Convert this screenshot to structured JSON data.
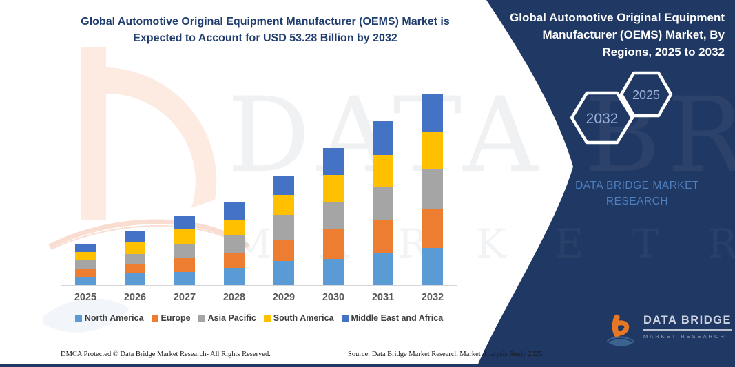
{
  "page": {
    "main_title": "Global Automotive Original Equipment Manufacturer (OEMS) Market is Expected to Account for USD 53.28 Billion by 2032",
    "footer_left": "DMCA Protected © Data Bridge Market Research-  All Rights Reserved.",
    "footer_right": "Source: Data Bridge Market Research  Market Analysis Study 2025"
  },
  "panel": {
    "title": "Global Automotive Original Equipment Manufacturer (OEMS) Market, By Regions, 2025 to 2032",
    "hexagon_left": "2032",
    "hexagon_right": "2025",
    "brand_line1": "DATA BRIDGE MARKET",
    "brand_line2": "RESEARCH",
    "logo_name": "DATA BRIDGE",
    "logo_sub": "MARKET RESEARCH",
    "background_color": "#203864",
    "brand_text_color": "#4e80c0"
  },
  "watermark": {
    "line1": "DATA BRIDGE",
    "line2": "M A R K E T   R E S E A R C H"
  },
  "chart_data": {
    "type": "bar",
    "stacked": true,
    "title": "Global Automotive Original Equipment Manufacturer (OEMS) Market is Expected to Account for USD 53.28 Billion by 2032",
    "unit": "USD Billion",
    "xlabel": "",
    "ylabel": "",
    "grid": false,
    "y_axis_shown": false,
    "legend_position": "bottom",
    "categories": [
      "2025",
      "2026",
      "2027",
      "2028",
      "2029",
      "2030",
      "2031",
      "2032"
    ],
    "series": [
      {
        "name": "North America",
        "color": "#5B9BD5",
        "values": [
          2.3,
          3.2,
          3.7,
          4.8,
          6.7,
          7.3,
          9.0,
          10.4
        ]
      },
      {
        "name": "Europe",
        "color": "#ED7D31",
        "values": [
          2.4,
          2.7,
          3.7,
          4.3,
          5.8,
          8.5,
          9.3,
          10.9
        ]
      },
      {
        "name": "Asia Pacific",
        "color": "#A5A5A5",
        "values": [
          2.2,
          2.8,
          4.0,
          4.9,
          7.1,
          7.4,
          9.0,
          10.8
        ]
      },
      {
        "name": "South America",
        "color": "#FFC000",
        "values": [
          2.4,
          3.2,
          4.2,
          4.3,
          5.5,
          7.4,
          9.0,
          10.6
        ]
      },
      {
        "name": "Middle East and Africa",
        "color": "#4472C4",
        "values": [
          2.1,
          3.2,
          3.6,
          4.7,
          5.3,
          7.5,
          9.3,
          10.58
        ]
      }
    ],
    "totals": [
      11.4,
      15.1,
      19.2,
      23.0,
      30.4,
      38.1,
      45.6,
      53.28
    ]
  }
}
